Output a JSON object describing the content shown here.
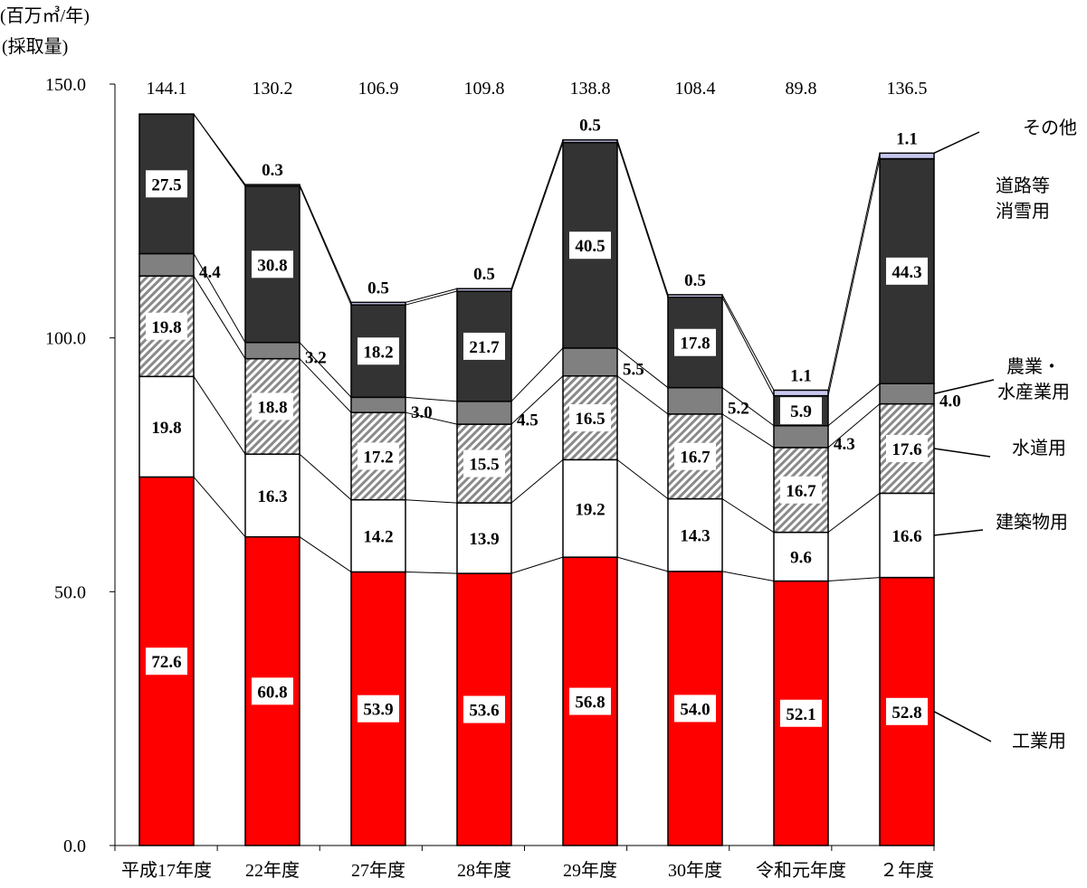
{
  "chart_data": {
    "type": "bar",
    "stacked": true,
    "unit_label": "(百万㎥/年)",
    "ylabel": "(採取量)",
    "ylim": [
      0,
      150
    ],
    "yticks": [
      "0.0",
      "50.0",
      "100.0",
      "150.0"
    ],
    "categories": [
      "平成17年度",
      "22年度",
      "27年度",
      "28年度",
      "29年度",
      "30年度",
      "令和元年度",
      "２年度"
    ],
    "totals": [
      "144.1",
      "130.2",
      "106.9",
      "109.8",
      "138.8",
      "108.4",
      "89.8",
      "136.5"
    ],
    "series": [
      {
        "name": "工業用",
        "values": [
          72.6,
          60.8,
          53.9,
          53.6,
          56.8,
          54.0,
          52.1,
          52.8
        ],
        "labels": [
          "72.6",
          "60.8",
          "53.9",
          "53.6",
          "56.8",
          "54.0",
          "52.1",
          "52.8"
        ],
        "color": "#ff0000",
        "pattern": "solid"
      },
      {
        "name": "建築物用",
        "values": [
          19.8,
          16.3,
          14.2,
          13.9,
          19.2,
          14.3,
          9.6,
          16.6
        ],
        "labels": [
          "19.8",
          "16.3",
          "14.2",
          "13.9",
          "19.2",
          "14.3",
          "9.6",
          "16.6"
        ],
        "color": "#ffffff",
        "pattern": "solid"
      },
      {
        "name": "水道用",
        "values": [
          19.8,
          18.8,
          17.2,
          15.5,
          16.5,
          16.7,
          16.7,
          17.6
        ],
        "labels": [
          "19.8",
          "18.8",
          "17.2",
          "15.5",
          "16.5",
          "16.7",
          "16.7",
          "17.6"
        ],
        "color": "#a0a0a0",
        "pattern": "hatch"
      },
      {
        "name": "農業・水産業用",
        "lines": [
          "農業・",
          "水産業用"
        ],
        "values": [
          4.4,
          3.2,
          3.0,
          4.5,
          5.5,
          5.2,
          4.3,
          4.0
        ],
        "labels": [
          "4.4",
          "3.2",
          "3.0",
          "4.5",
          "5.5",
          "5.2",
          "4.3",
          "4.0"
        ],
        "color": "#808080",
        "pattern": "solid"
      },
      {
        "name": "道路等消雪用",
        "lines": [
          "道路等",
          "消雪用"
        ],
        "values": [
          27.5,
          30.8,
          18.2,
          21.7,
          40.5,
          17.8,
          5.9,
          44.3
        ],
        "labels": [
          "27.5",
          "30.8",
          "18.2",
          "21.7",
          "40.5",
          "17.8",
          "5.9",
          "44.3"
        ],
        "color": "#333333",
        "pattern": "solid"
      },
      {
        "name": "その他",
        "values": [
          0.0,
          0.3,
          0.5,
          0.5,
          0.5,
          0.5,
          1.1,
          1.1
        ],
        "labels": [
          "",
          "0.3",
          "0.5",
          "0.5",
          "0.5",
          "0.5",
          "1.1",
          "1.1"
        ],
        "color": "#c8c8f0",
        "pattern": "solid"
      }
    ]
  }
}
